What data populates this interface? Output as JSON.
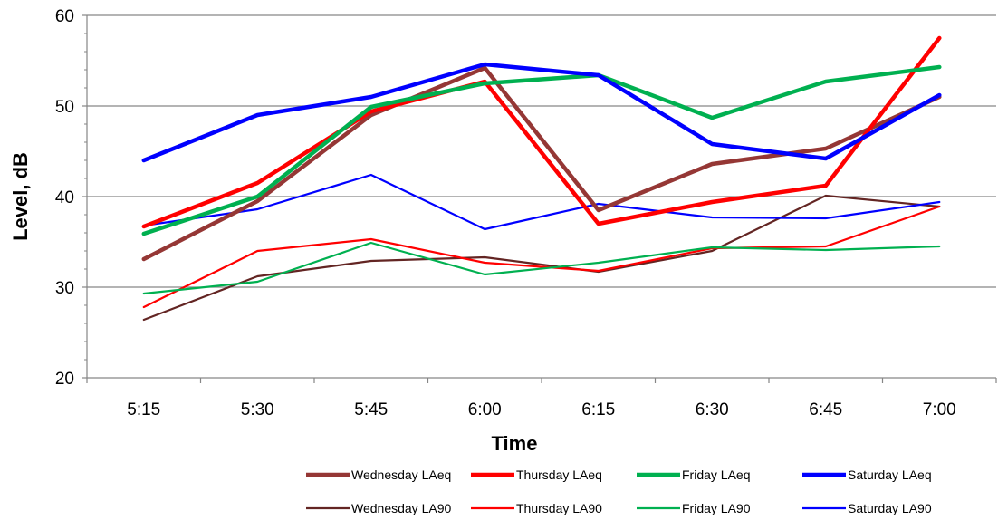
{
  "chart_data": {
    "type": "line",
    "title": "",
    "xlabel": "Time",
    "ylabel": "Level, dB",
    "categories": [
      "5:15",
      "5:30",
      "5:45",
      "6:00",
      "6:15",
      "6:30",
      "6:45",
      "7:00"
    ],
    "ylim": [
      20,
      60
    ],
    "yticks": [
      20,
      30,
      40,
      50,
      60
    ],
    "grid": "horizontal",
    "legend_position": "bottom",
    "series": [
      {
        "name": "Wednesday LAeq",
        "color": "#953735",
        "style": "thick",
        "values": [
          33.1,
          39.5,
          49.0,
          54.2,
          38.5,
          43.6,
          45.3,
          51.0
        ]
      },
      {
        "name": "Thursday LAeq",
        "color": "#ff0000",
        "style": "thick",
        "values": [
          36.7,
          41.5,
          49.4,
          52.7,
          37.0,
          39.4,
          41.2,
          57.5
        ]
      },
      {
        "name": "Friday LAeq",
        "color": "#00b050",
        "style": "thick",
        "values": [
          35.9,
          40.0,
          49.9,
          52.5,
          53.4,
          48.7,
          52.7,
          54.3
        ]
      },
      {
        "name": "Saturday LAeq",
        "color": "#0000ff",
        "style": "thick",
        "values": [
          44.0,
          49.0,
          51.0,
          54.6,
          53.4,
          45.8,
          44.2,
          51.2
        ]
      },
      {
        "name": "Wednesday LA90",
        "color": "#632523",
        "style": "thin",
        "values": [
          26.4,
          31.2,
          32.9,
          33.3,
          31.7,
          34.0,
          40.1,
          38.9
        ]
      },
      {
        "name": "Thursday LA90",
        "color": "#ff0000",
        "style": "thin",
        "values": [
          27.8,
          34.0,
          35.3,
          32.7,
          31.8,
          34.3,
          34.5,
          38.9
        ]
      },
      {
        "name": "Friday LA90",
        "color": "#00b050",
        "style": "thin",
        "values": [
          29.3,
          30.6,
          34.9,
          31.4,
          32.7,
          34.4,
          34.1,
          34.5
        ]
      },
      {
        "name": "Saturday LA90",
        "color": "#0000ff",
        "style": "thin",
        "values": [
          36.8,
          38.6,
          42.4,
          36.4,
          39.2,
          37.7,
          37.6,
          39.4
        ]
      }
    ]
  }
}
